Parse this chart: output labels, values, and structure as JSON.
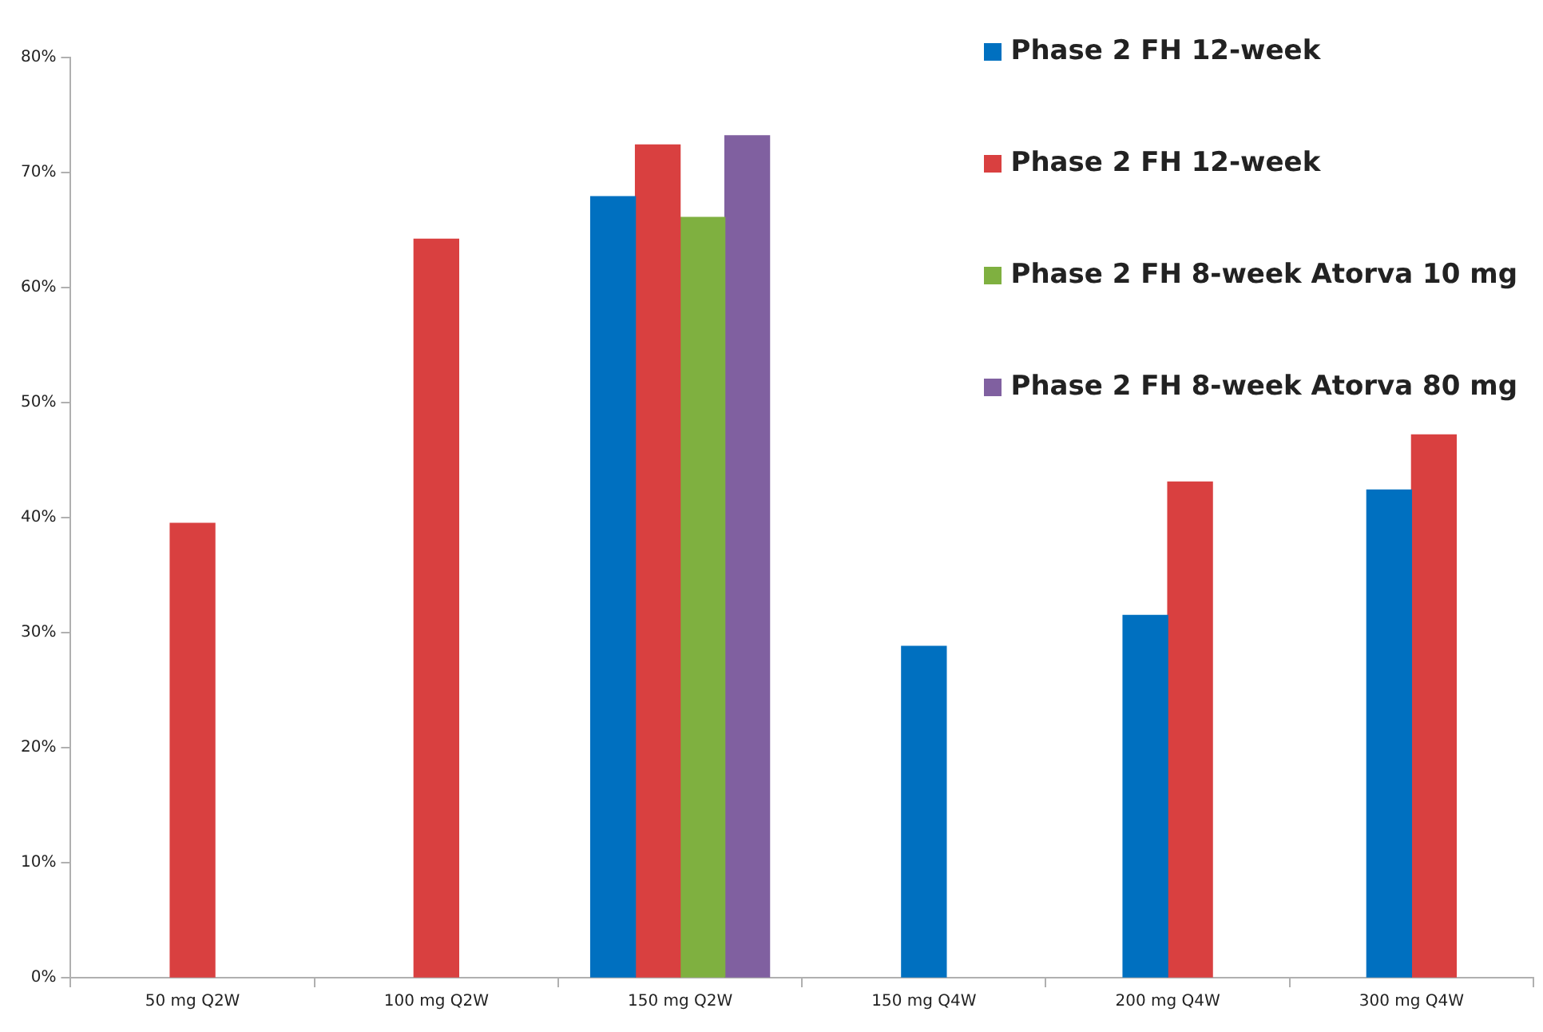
{
  "chart_data": {
    "type": "bar",
    "categories": [
      "50 mg Q2W",
      "100 mg Q2W",
      "150 mg Q2W",
      "150 mg Q4W",
      "200 mg Q4W",
      "300 mg Q4W"
    ],
    "series": [
      {
        "name": "Phase 2 FH 12-week",
        "color": "#0070c0",
        "values": [
          null,
          null,
          67.9,
          28.8,
          31.5,
          42.4
        ]
      },
      {
        "name": "Phase 2 FH 12-week",
        "color": "#d94040",
        "values": [
          39.5,
          64.2,
          72.4,
          null,
          43.1,
          47.2
        ]
      },
      {
        "name": "Phase 2 FH 8-week Atorva 10 mg",
        "color": "#7fb040",
        "values": [
          null,
          null,
          66.1,
          null,
          null,
          null
        ]
      },
      {
        "name": "Phase 2 FH 8-week Atorva 80 mg",
        "color": "#8060a0",
        "values": [
          null,
          null,
          73.2,
          null,
          null,
          null
        ]
      }
    ],
    "ylim": [
      0,
      80
    ],
    "yticks": [
      {
        "value": 0,
        "label": "0%"
      },
      {
        "value": 10,
        "label": "10%"
      },
      {
        "value": 20,
        "label": "20%"
      },
      {
        "value": 30,
        "label": "30%"
      },
      {
        "value": 40,
        "label": "40%"
      },
      {
        "value": 50,
        "label": "50%"
      },
      {
        "value": 60,
        "label": "60%"
      },
      {
        "value": 70,
        "label": "70%"
      },
      {
        "value": 80,
        "label": "80%"
      }
    ],
    "grid": false,
    "legend": "top right"
  }
}
